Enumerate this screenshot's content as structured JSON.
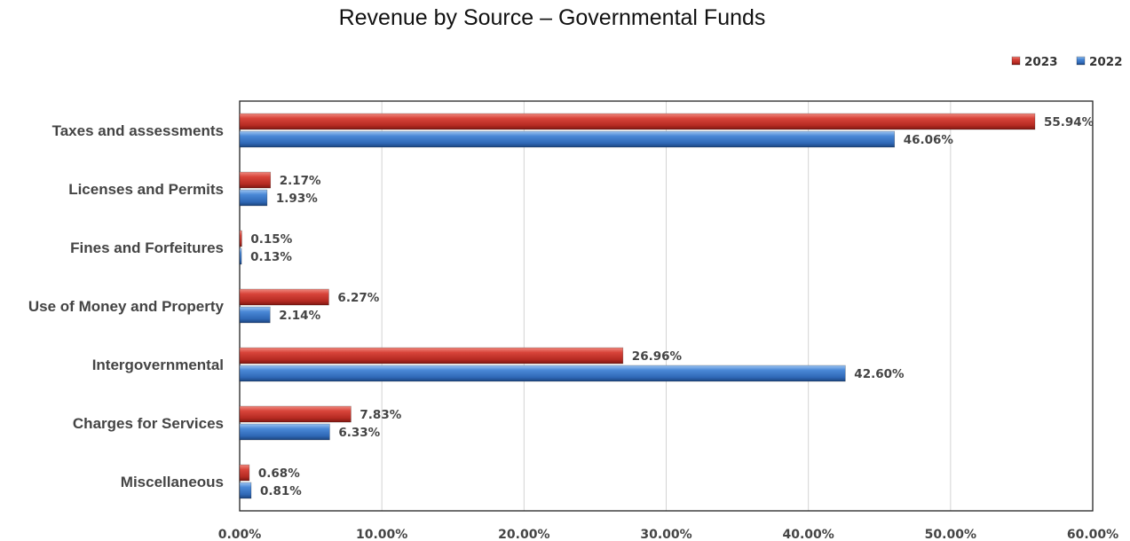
{
  "chart_data": {
    "type": "bar",
    "orientation": "horizontal",
    "title": "Revenue by Source – Governmental Funds",
    "categories": [
      "Taxes and assessments",
      "Licenses and Permits",
      "Fines and Forfeitures",
      "Use of Money and Property",
      "Intergovernmental",
      "Charges for Services",
      "Miscellaneous"
    ],
    "series": [
      {
        "name": "2023",
        "color": "#c0392b",
        "values": [
          55.94,
          2.17,
          0.15,
          6.27,
          26.96,
          7.83,
          0.68
        ],
        "labels": [
          "55.94%",
          "2.17%",
          "0.15%",
          "6.27%",
          "26.96%",
          "7.83%",
          "0.68%"
        ]
      },
      {
        "name": "2022",
        "color": "#3a78c9",
        "values": [
          46.06,
          1.93,
          0.13,
          2.14,
          42.6,
          6.33,
          0.81
        ],
        "labels": [
          "46.06%",
          "1.93%",
          "0.13%",
          "2.14%",
          "42.60%",
          "6.33%",
          "0.81%"
        ]
      }
    ],
    "xlim": [
      0,
      60
    ],
    "xticks": [
      0,
      10,
      20,
      30,
      40,
      50,
      60
    ],
    "xtick_labels": [
      "0.00%",
      "10.00%",
      "20.00%",
      "30.00%",
      "40.00%",
      "50.00%",
      "60.00%"
    ],
    "xlabel": "",
    "ylabel": "",
    "grid": "vertical",
    "legend_position": "top-right"
  }
}
